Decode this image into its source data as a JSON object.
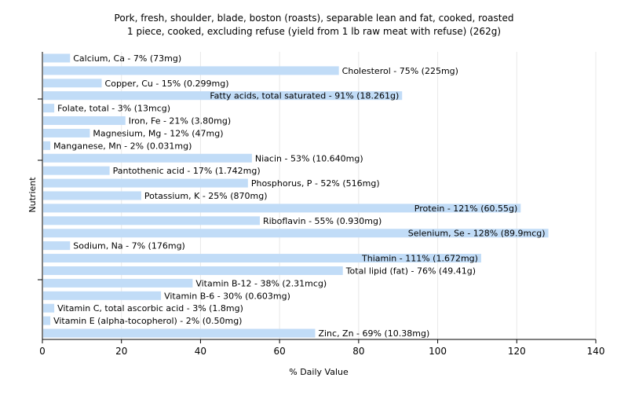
{
  "chart_data": {
    "type": "bar",
    "orientation": "horizontal",
    "title": "Pork, fresh, shoulder, blade, boston (roasts), separable lean and fat, cooked, roasted",
    "subtitle": "1 piece, cooked, excluding refuse (yield from 1 lb raw meat with refuse) (262g)",
    "xlabel": "% Daily Value",
    "ylabel": "Nutrient",
    "xlim": [
      0,
      140
    ],
    "xticks": [
      0,
      20,
      40,
      60,
      80,
      100,
      120,
      140
    ],
    "grid": "vertical",
    "bar_color": "#c1dcf7",
    "grid_color": "#e8e8e8",
    "categories": [
      "Calcium, Ca",
      "Cholesterol",
      "Copper, Cu",
      "Fatty acids, total saturated",
      "Folate, total",
      "Iron, Fe",
      "Magnesium, Mg",
      "Manganese, Mn",
      "Niacin",
      "Pantothenic acid",
      "Phosphorus, P",
      "Potassium, K",
      "Protein",
      "Riboflavin",
      "Selenium, Se",
      "Sodium, Na",
      "Thiamin",
      "Total lipid (fat)",
      "Vitamin B-12",
      "Vitamin B-6",
      "Vitamin C, total ascorbic acid",
      "Vitamin E (alpha-tocopherol)",
      "Zinc, Zn"
    ],
    "values": [
      7,
      75,
      15,
      91,
      3,
      21,
      12,
      2,
      53,
      17,
      52,
      25,
      121,
      55,
      128,
      7,
      111,
      76,
      38,
      30,
      3,
      2,
      69
    ],
    "labels": [
      "Calcium, Ca - 7% (73mg)",
      "Cholesterol - 75% (225mg)",
      "Copper, Cu - 15% (0.299mg)",
      "Fatty acids, total saturated - 91% (18.261g)",
      "Folate, total - 3% (13mcg)",
      "Iron, Fe - 21% (3.80mg)",
      "Magnesium, Mg - 12% (47mg)",
      "Manganese, Mn - 2% (0.031mg)",
      "Niacin - 53% (10.640mg)",
      "Pantothenic acid - 17% (1.742mg)",
      "Phosphorus, P - 52% (516mg)",
      "Potassium, K - 25% (870mg)",
      "Protein - 121% (60.55g)",
      "Riboflavin - 55% (0.930mg)",
      "Selenium, Se - 128% (89.9mcg)",
      "Sodium, Na - 7% (176mg)",
      "Thiamin - 111% (1.672mg)",
      "Total lipid (fat) - 76% (49.41g)",
      "Vitamin B-12 - 38% (2.31mcg)",
      "Vitamin B-6 - 30% (0.603mg)",
      "Vitamin C, total ascorbic acid - 3% (1.8mg)",
      "Vitamin E (alpha-tocopherol) - 2% (0.50mg)",
      "Zinc, Zn - 69% (10.38mg)"
    ]
  }
}
